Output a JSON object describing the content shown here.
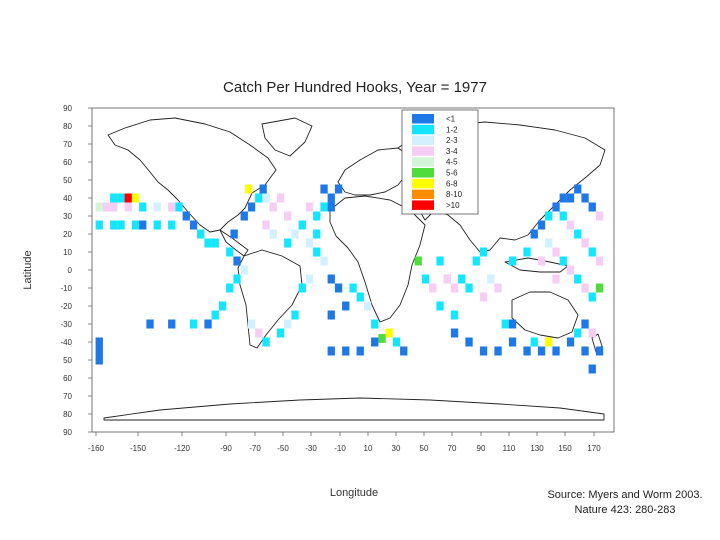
{
  "chart_data": {
    "type": "heatmap",
    "title": "Catch Per Hundred Hooks, Year = 1977",
    "xlabel": "Longitude",
    "ylabel": "Latitude",
    "x_ticks": [
      "-160",
      "-150",
      "-120",
      "-90",
      "-70",
      "-50",
      "-30",
      "-10",
      "10",
      "30",
      "50",
      "70",
      "90",
      "110",
      "130",
      "150",
      "170"
    ],
    "y_ticks": [
      "90",
      "80",
      "70",
      "60",
      "50",
      "40",
      "30",
      "20",
      "10",
      "0",
      "-10",
      "-20",
      "-30",
      "-40",
      "50",
      "60",
      "70",
      "80",
      "90"
    ],
    "xlim": [
      -180,
      180
    ],
    "ylim": [
      -90,
      90
    ],
    "cell_size_deg": 5,
    "legend_position": "top-right",
    "categories": [
      {
        "label": "<1",
        "color": "#1e78e6"
      },
      {
        "label": "1-2",
        "color": "#14e6ff"
      },
      {
        "label": "2-3",
        "color": "#d2f0ff"
      },
      {
        "label": "3-4",
        "color": "#f5cdf5"
      },
      {
        "label": "4-5",
        "color": "#d2f5d7"
      },
      {
        "label": "5-6",
        "color": "#50dc3c"
      },
      {
        "label": "6-8",
        "color": "#ffff00"
      },
      {
        "label": "8-10",
        "color": "#ff8c00"
      },
      {
        "label": ">10",
        "color": "#ff0000"
      }
    ],
    "cells": [
      {
        "lon": -175,
        "lat": 35,
        "c": 4
      },
      {
        "lon": -170,
        "lat": 35,
        "c": 3
      },
      {
        "lon": -165,
        "lat": 40,
        "c": 1
      },
      {
        "lon": -160,
        "lat": 40,
        "c": 1
      },
      {
        "lon": -155,
        "lat": 40,
        "c": 8
      },
      {
        "lon": -150,
        "lat": 40,
        "c": 6
      },
      {
        "lon": -165,
        "lat": 35,
        "c": 3
      },
      {
        "lon": -155,
        "lat": 35,
        "c": 3
      },
      {
        "lon": -145,
        "lat": 35,
        "c": 1
      },
      {
        "lon": -135,
        "lat": 35,
        "c": 2
      },
      {
        "lon": -125,
        "lat": 35,
        "c": 3
      },
      {
        "lon": -120,
        "lat": 35,
        "c": 1
      },
      {
        "lon": -175,
        "lat": 25,
        "c": 1
      },
      {
        "lon": -165,
        "lat": 25,
        "c": 1
      },
      {
        "lon": -160,
        "lat": 25,
        "c": 1
      },
      {
        "lon": -150,
        "lat": 25,
        "c": 1
      },
      {
        "lon": -145,
        "lat": 25,
        "c": 0
      },
      {
        "lon": -135,
        "lat": 25,
        "c": 1
      },
      {
        "lon": -125,
        "lat": 25,
        "c": 1
      },
      {
        "lon": -115,
        "lat": 30,
        "c": 0
      },
      {
        "lon": -110,
        "lat": 25,
        "c": 0
      },
      {
        "lon": -105,
        "lat": 20,
        "c": 1
      },
      {
        "lon": -100,
        "lat": 15,
        "c": 1
      },
      {
        "lon": -95,
        "lat": 15,
        "c": 1
      },
      {
        "lon": -85,
        "lat": 10,
        "c": 1
      },
      {
        "lon": -80,
        "lat": 5,
        "c": 0
      },
      {
        "lon": -82,
        "lat": 20,
        "c": 0
      },
      {
        "lon": -75,
        "lat": 30,
        "c": 0
      },
      {
        "lon": -70,
        "lat": 35,
        "c": 0
      },
      {
        "lon": -65,
        "lat": 40,
        "c": 1
      },
      {
        "lon": -72,
        "lat": 45,
        "c": 6
      },
      {
        "lon": -62,
        "lat": 45,
        "c": 0
      },
      {
        "lon": -60,
        "lat": 40,
        "c": 2
      },
      {
        "lon": -55,
        "lat": 35,
        "c": 3
      },
      {
        "lon": -50,
        "lat": 40,
        "c": 3
      },
      {
        "lon": -45,
        "lat": 30,
        "c": 3
      },
      {
        "lon": -60,
        "lat": 25,
        "c": 3
      },
      {
        "lon": -55,
        "lat": 20,
        "c": 2
      },
      {
        "lon": -45,
        "lat": 15,
        "c": 1
      },
      {
        "lon": -40,
        "lat": 20,
        "c": 2
      },
      {
        "lon": -35,
        "lat": 25,
        "c": 1
      },
      {
        "lon": -30,
        "lat": 35,
        "c": 3
      },
      {
        "lon": -25,
        "lat": 30,
        "c": 1
      },
      {
        "lon": -20,
        "lat": 35,
        "c": 1
      },
      {
        "lon": -15,
        "lat": 40,
        "c": 0
      },
      {
        "lon": -10,
        "lat": 45,
        "c": 0
      },
      {
        "lon": -20,
        "lat": 45,
        "c": 0
      },
      {
        "lon": -15,
        "lat": 35,
        "c": 0
      },
      {
        "lon": -25,
        "lat": 20,
        "c": 1
      },
      {
        "lon": -30,
        "lat": 15,
        "c": 2
      },
      {
        "lon": -25,
        "lat": 10,
        "c": 1
      },
      {
        "lon": -20,
        "lat": 5,
        "c": 2
      },
      {
        "lon": -15,
        "lat": -5,
        "c": 0
      },
      {
        "lon": -10,
        "lat": -10,
        "c": 0
      },
      {
        "lon": -5,
        "lat": -20,
        "c": 0
      },
      {
        "lon": -15,
        "lat": -25,
        "c": 0
      },
      {
        "lon": 0,
        "lat": -10,
        "c": 1
      },
      {
        "lon": 5,
        "lat": -15,
        "c": 1
      },
      {
        "lon": 10,
        "lat": -20,
        "c": 2
      },
      {
        "lon": 15,
        "lat": -30,
        "c": 1
      },
      {
        "lon": 20,
        "lat": -38,
        "c": 5
      },
      {
        "lon": 25,
        "lat": -35,
        "c": 6
      },
      {
        "lon": 15,
        "lat": -40,
        "c": 0
      },
      {
        "lon": 5,
        "lat": -45,
        "c": 0
      },
      {
        "lon": -5,
        "lat": -45,
        "c": 0
      },
      {
        "lon": -15,
        "lat": -45,
        "c": 0
      },
      {
        "lon": 30,
        "lat": -40,
        "c": 1
      },
      {
        "lon": 35,
        "lat": -45,
        "c": 0
      },
      {
        "lon": 45,
        "lat": 5,
        "c": 5
      },
      {
        "lon": 50,
        "lat": -5,
        "c": 1
      },
      {
        "lon": 55,
        "lat": -10,
        "c": 3
      },
      {
        "lon": 60,
        "lat": 5,
        "c": 1
      },
      {
        "lon": 65,
        "lat": -5,
        "c": 3
      },
      {
        "lon": 70,
        "lat": -10,
        "c": 3
      },
      {
        "lon": 75,
        "lat": -5,
        "c": 1
      },
      {
        "lon": 80,
        "lat": -10,
        "c": 1
      },
      {
        "lon": 85,
        "lat": 5,
        "c": 1
      },
      {
        "lon": 90,
        "lat": -15,
        "c": 3
      },
      {
        "lon": 95,
        "lat": -5,
        "c": 2
      },
      {
        "lon": 100,
        "lat": -10,
        "c": 3
      },
      {
        "lon": 90,
        "lat": 10,
        "c": 1
      },
      {
        "lon": 60,
        "lat": -20,
        "c": 1
      },
      {
        "lon": 70,
        "lat": -25,
        "c": 1
      },
      {
        "lon": 70,
        "lat": -35,
        "c": 0
      },
      {
        "lon": 80,
        "lat": -40,
        "c": 0
      },
      {
        "lon": 90,
        "lat": -45,
        "c": 0
      },
      {
        "lon": 100,
        "lat": -45,
        "c": 0
      },
      {
        "lon": 110,
        "lat": -40,
        "c": 0
      },
      {
        "lon": 120,
        "lat": -45,
        "c": 0
      },
      {
        "lon": 130,
        "lat": -45,
        "c": 0
      },
      {
        "lon": 140,
        "lat": -45,
        "c": 0
      },
      {
        "lon": 150,
        "lat": -40,
        "c": 0
      },
      {
        "lon": 160,
        "lat": -45,
        "c": 0
      },
      {
        "lon": 170,
        "lat": -45,
        "c": 0
      },
      {
        "lon": 165,
        "lat": -55,
        "c": 0
      },
      {
        "lon": 155,
        "lat": -35,
        "c": 1
      },
      {
        "lon": 160,
        "lat": -30,
        "c": 0
      },
      {
        "lon": 165,
        "lat": -35,
        "c": 3
      },
      {
        "lon": 105,
        "lat": -30,
        "c": 1
      },
      {
        "lon": 110,
        "lat": -30,
        "c": 0
      },
      {
        "lon": 125,
        "lat": -40,
        "c": 1
      },
      {
        "lon": 135,
        "lat": -40,
        "c": 6
      },
      {
        "lon": 110,
        "lat": 5,
        "c": 1
      },
      {
        "lon": 120,
        "lat": 10,
        "c": 1
      },
      {
        "lon": 125,
        "lat": 20,
        "c": 0
      },
      {
        "lon": 130,
        "lat": 25,
        "c": 0
      },
      {
        "lon": 135,
        "lat": 30,
        "c": 1
      },
      {
        "lon": 140,
        "lat": 35,
        "c": 0
      },
      {
        "lon": 145,
        "lat": 40,
        "c": 0
      },
      {
        "lon": 150,
        "lat": 40,
        "c": 0
      },
      {
        "lon": 155,
        "lat": 45,
        "c": 0
      },
      {
        "lon": 160,
        "lat": 40,
        "c": 0
      },
      {
        "lon": 165,
        "lat": 35,
        "c": 0
      },
      {
        "lon": 170,
        "lat": 30,
        "c": 3
      },
      {
        "lon": 145,
        "lat": 30,
        "c": 1
      },
      {
        "lon": 150,
        "lat": 25,
        "c": 3
      },
      {
        "lon": 155,
        "lat": 20,
        "c": 1
      },
      {
        "lon": 160,
        "lat": 15,
        "c": 3
      },
      {
        "lon": 165,
        "lat": 10,
        "c": 1
      },
      {
        "lon": 170,
        "lat": 5,
        "c": 3
      },
      {
        "lon": 140,
        "lat": 10,
        "c": 3
      },
      {
        "lon": 145,
        "lat": 5,
        "c": 1
      },
      {
        "lon": 150,
        "lat": 0,
        "c": 3
      },
      {
        "lon": 155,
        "lat": -5,
        "c": 1
      },
      {
        "lon": 160,
        "lat": -10,
        "c": 3
      },
      {
        "lon": 165,
        "lat": -15,
        "c": 1
      },
      {
        "lon": 170,
        "lat": -10,
        "c": 5
      },
      {
        "lon": 140,
        "lat": -5,
        "c": 3
      },
      {
        "lon": 130,
        "lat": 5,
        "c": 3
      },
      {
        "lon": 135,
        "lat": 15,
        "c": 2
      },
      {
        "lon": -175,
        "lat": -45,
        "c": 0
      },
      {
        "lon": -175,
        "lat": -50,
        "c": 0
      },
      {
        "lon": -175,
        "lat": -40,
        "c": 0
      },
      {
        "lon": -140,
        "lat": -30,
        "c": 0
      },
      {
        "lon": -125,
        "lat": -30,
        "c": 0
      },
      {
        "lon": -110,
        "lat": -30,
        "c": 1
      },
      {
        "lon": -100,
        "lat": -30,
        "c": 0
      },
      {
        "lon": -95,
        "lat": -25,
        "c": 1
      },
      {
        "lon": -90,
        "lat": -20,
        "c": 1
      },
      {
        "lon": -85,
        "lat": -10,
        "c": 1
      },
      {
        "lon": -80,
        "lat": -5,
        "c": 1
      },
      {
        "lon": -75,
        "lat": 0,
        "c": 2
      },
      {
        "lon": -70,
        "lat": -30,
        "c": 2
      },
      {
        "lon": -65,
        "lat": -35,
        "c": 3
      },
      {
        "lon": -60,
        "lat": -40,
        "c": 1
      },
      {
        "lon": -50,
        "lat": -35,
        "c": 1
      },
      {
        "lon": -45,
        "lat": -30,
        "c": 2
      },
      {
        "lon": -40,
        "lat": -25,
        "c": 1
      },
      {
        "lon": -35,
        "lat": -10,
        "c": 1
      },
      {
        "lon": -30,
        "lat": -5,
        "c": 2
      }
    ]
  },
  "source_note": {
    "line1": "Source: Myers and Worm 2003.",
    "line2": "Nature 423: 280-283"
  }
}
